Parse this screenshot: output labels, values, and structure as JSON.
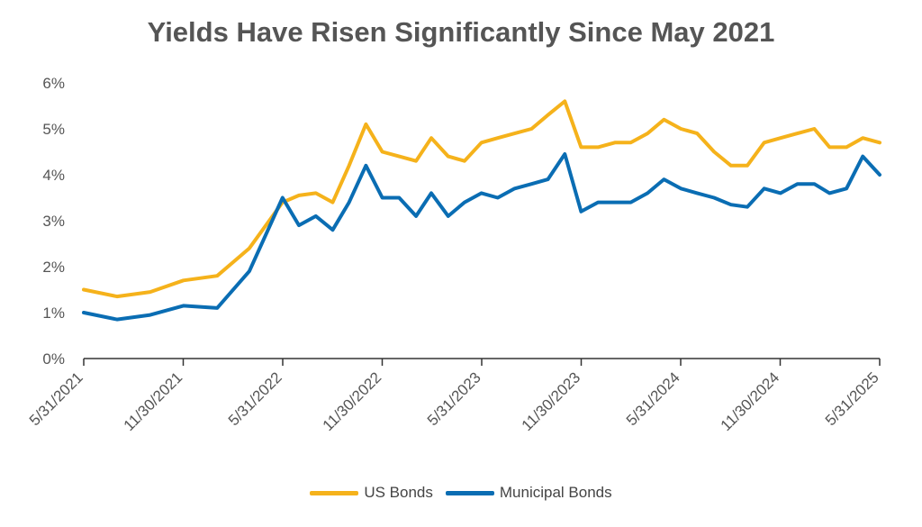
{
  "chart_data": {
    "type": "line",
    "title": "Yields Have Risen Significantly Since May 2021",
    "xlabel": "",
    "ylabel": "",
    "ylim": [
      0,
      6
    ],
    "yticks": [
      0,
      1,
      2,
      3,
      4,
      5,
      6
    ],
    "ytick_labels": [
      "0%",
      "1%",
      "2%",
      "3%",
      "4%",
      "5%",
      "6%"
    ],
    "xticks": [
      "5/31/2021",
      "11/30/2021",
      "5/31/2022",
      "11/30/2022",
      "5/31/2023",
      "11/30/2023",
      "5/31/2024",
      "11/30/2024",
      "5/31/2025"
    ],
    "grid": false,
    "legend": "bottom",
    "x": [
      "2021-05-31",
      "2021-07-31",
      "2021-09-30",
      "2021-11-30",
      "2022-01-31",
      "2022-03-31",
      "2022-05-31",
      "2022-06-30",
      "2022-07-31",
      "2022-08-31",
      "2022-09-30",
      "2022-10-31",
      "2022-11-30",
      "2022-12-31",
      "2023-01-31",
      "2023-02-28",
      "2023-03-31",
      "2023-04-30",
      "2023-05-31",
      "2023-06-30",
      "2023-07-31",
      "2023-08-31",
      "2023-09-30",
      "2023-10-31",
      "2023-11-30",
      "2023-12-31",
      "2024-01-31",
      "2024-02-29",
      "2024-03-31",
      "2024-04-30",
      "2024-05-31",
      "2024-06-30",
      "2024-07-31",
      "2024-08-31",
      "2024-09-30",
      "2024-10-31",
      "2024-11-30",
      "2024-12-31",
      "2025-01-31",
      "2025-02-28",
      "2025-03-31",
      "2025-04-30",
      "2025-05-31"
    ],
    "series": [
      {
        "name": "US Bonds",
        "color": "#F5B21B",
        "values": [
          1.5,
          1.35,
          1.45,
          1.7,
          1.8,
          2.4,
          3.4,
          3.55,
          3.6,
          3.4,
          4.2,
          5.1,
          4.5,
          4.4,
          4.3,
          4.8,
          4.4,
          4.3,
          4.7,
          4.8,
          4.9,
          5.0,
          5.3,
          5.6,
          4.6,
          4.6,
          4.7,
          4.7,
          4.9,
          5.2,
          5.0,
          4.9,
          4.5,
          4.2,
          4.2,
          4.7,
          4.8,
          4.9,
          5.0,
          4.6,
          4.6,
          4.8,
          4.7
        ]
      },
      {
        "name": "Municipal Bonds",
        "color": "#0A6DB3",
        "values": [
          1.0,
          0.85,
          0.95,
          1.15,
          1.1,
          1.9,
          3.5,
          2.9,
          3.1,
          2.8,
          3.4,
          4.2,
          3.5,
          3.5,
          3.1,
          3.6,
          3.1,
          3.4,
          3.6,
          3.5,
          3.7,
          3.8,
          3.9,
          4.45,
          3.2,
          3.4,
          3.4,
          3.4,
          3.6,
          3.9,
          3.7,
          3.6,
          3.5,
          3.35,
          3.3,
          3.7,
          3.6,
          3.8,
          3.8,
          3.6,
          3.7,
          4.4,
          4.0
        ]
      }
    ]
  }
}
